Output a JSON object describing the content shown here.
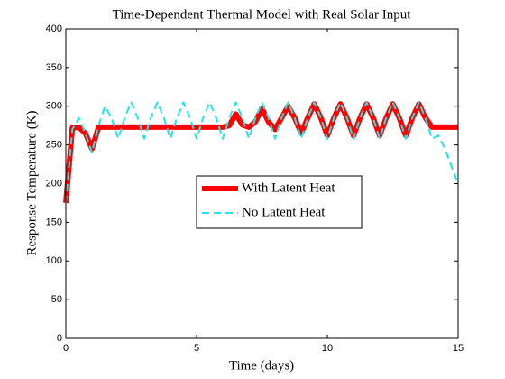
{
  "chart_data": {
    "type": "line",
    "title": "Time-Dependent Thermal Model with Real Solar Input",
    "x_label": "Time (days)",
    "y_label": "Response Temperature (K)",
    "x": [
      0,
      0.25,
      0.5,
      0.75,
      1,
      1.25,
      1.5,
      1.75,
      2,
      2.25,
      2.5,
      2.75,
      3,
      3.25,
      3.5,
      3.75,
      4,
      4.25,
      4.5,
      4.75,
      5,
      5.25,
      5.5,
      5.75,
      6,
      6.25,
      6.5,
      6.75,
      7,
      7.25,
      7.5,
      7.75,
      8,
      8.25,
      8.5,
      8.75,
      9,
      9.25,
      9.5,
      9.75,
      10,
      10.25,
      10.5,
      10.75,
      11,
      11.25,
      11.5,
      11.75,
      12,
      12.25,
      12.5,
      12.75,
      13,
      13.25,
      13.5,
      13.75,
      14,
      14.25,
      14.5,
      14.75,
      15
    ],
    "series": [
      {
        "name": "With Latent Heat",
        "color": "#ff0000",
        "dash": "solid",
        "width": 6,
        "values": [
          175,
          272,
          273,
          265,
          245,
          273,
          273,
          273,
          273,
          273,
          273,
          273,
          273,
          273,
          273,
          273,
          273,
          273,
          273,
          273,
          273,
          273,
          273,
          273,
          273,
          275,
          290,
          276,
          273,
          280,
          297,
          280,
          270,
          285,
          300,
          285,
          265,
          285,
          303,
          285,
          262,
          285,
          303,
          285,
          262,
          285,
          303,
          285,
          262,
          285,
          303,
          285,
          262,
          285,
          303,
          285,
          273,
          273,
          273,
          273,
          273
        ]
      },
      {
        "name": "No Latent Heat",
        "color": "#22e5e5",
        "dash": "dashed",
        "width": 2,
        "values": [
          175,
          270,
          285,
          265,
          240,
          275,
          300,
          285,
          258,
          285,
          305,
          285,
          258,
          285,
          305,
          285,
          258,
          285,
          305,
          285,
          258,
          285,
          305,
          285,
          258,
          285,
          305,
          285,
          258,
          285,
          305,
          285,
          258,
          285,
          305,
          285,
          258,
          285,
          305,
          285,
          258,
          285,
          305,
          285,
          258,
          285,
          305,
          285,
          258,
          285,
          305,
          285,
          258,
          285,
          305,
          285,
          258,
          262,
          245,
          222,
          200
        ]
      }
    ],
    "xlim": [
      0,
      15
    ],
    "xticks": [
      0,
      5,
      10,
      15
    ],
    "ylim": [
      0,
      400
    ],
    "yticks": [
      0,
      50,
      100,
      150,
      200,
      250,
      300,
      350,
      400
    ],
    "grid": false,
    "legend": "center"
  }
}
